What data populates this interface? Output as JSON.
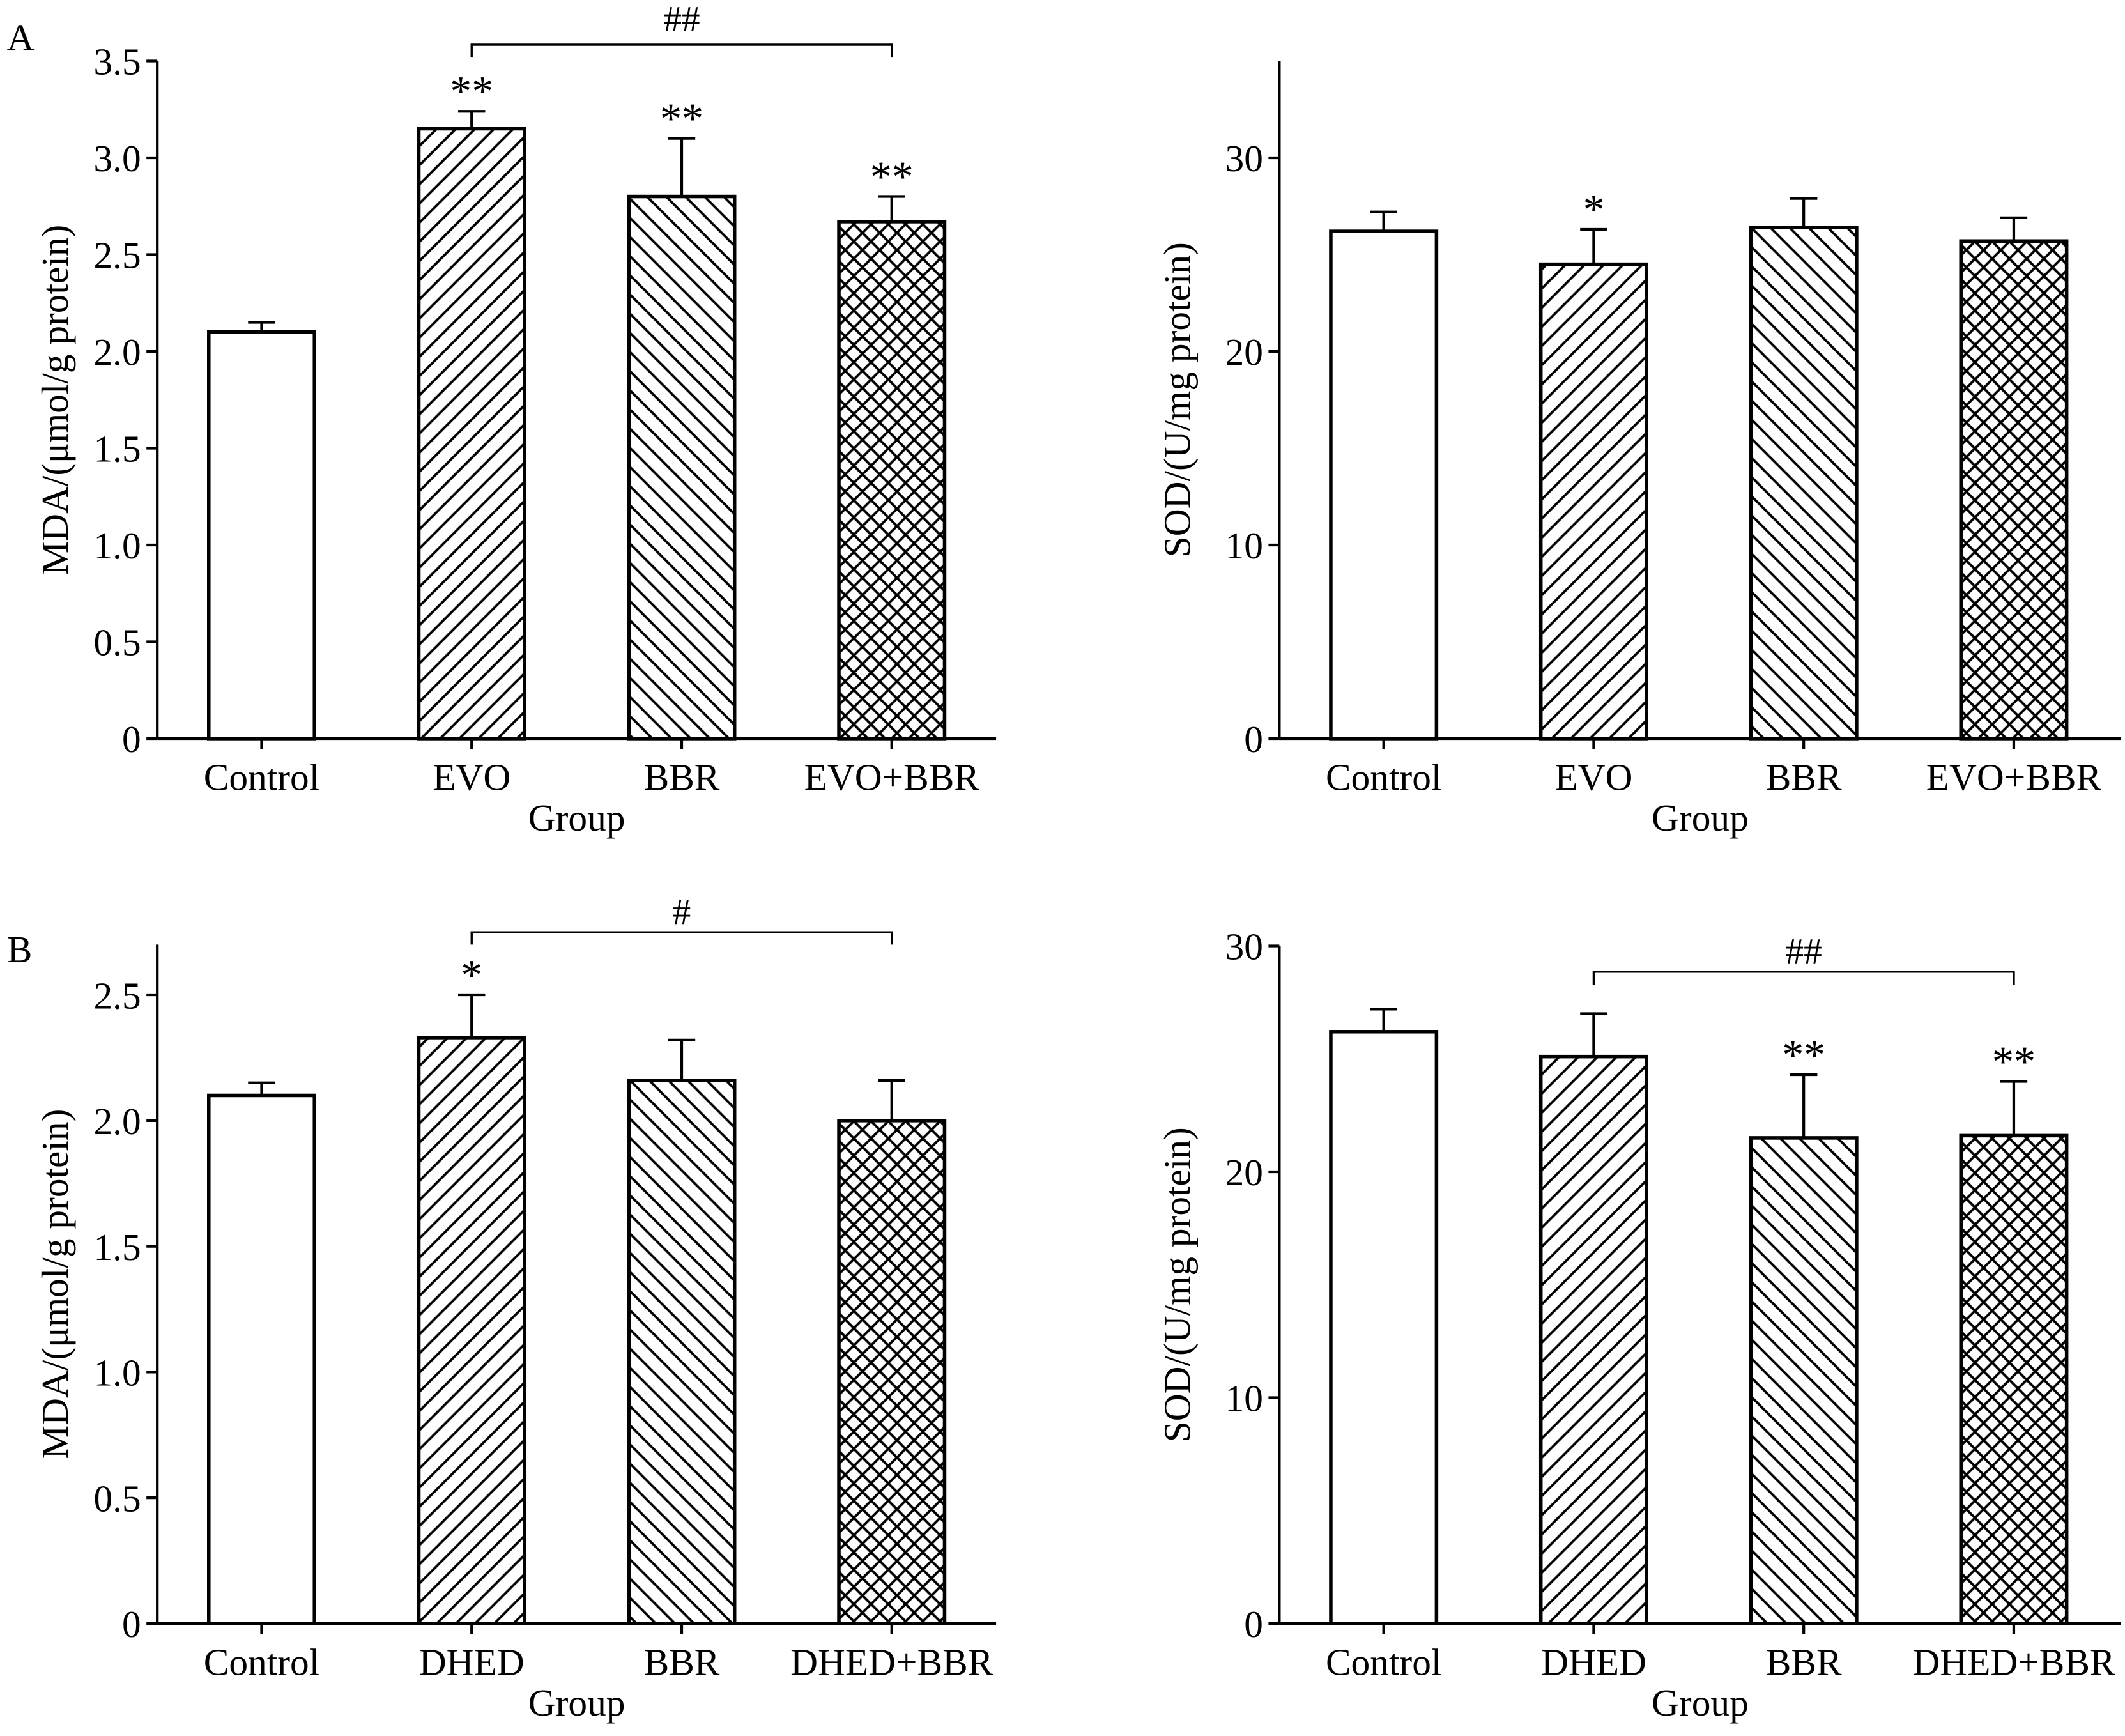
{
  "panel_labels": [
    "A",
    "B"
  ],
  "colors": {
    "ink": "#000000",
    "background": "#ffffff"
  },
  "chart_data": [
    {
      "type": "bar",
      "categories": [
        "Control",
        "EVO",
        "BBR",
        "EVO+BBR"
      ],
      "values": [
        2.1,
        3.15,
        2.8,
        2.67
      ],
      "errors": [
        0.05,
        0.09,
        0.3,
        0.13
      ],
      "significance": [
        "",
        "**",
        "**",
        "**"
      ],
      "comparison": {
        "from": 1,
        "to": 3,
        "label": "##"
      },
      "bar_fills": [
        "open",
        "forward-hatch",
        "back-hatch",
        "cross-hatch"
      ],
      "xlabel": "Group",
      "ylabel": "MDA/(μmol/g protein)",
      "ylim": [
        0,
        3.5
      ],
      "yticks": [
        0,
        0.5,
        1.0,
        1.5,
        2.0,
        2.5,
        3.0,
        3.5
      ],
      "ytick_labels": [
        "0",
        "0.5",
        "1.0",
        "1.5",
        "2.0",
        "2.5",
        "3.0",
        "3.5"
      ],
      "grid": false
    },
    {
      "type": "bar",
      "categories": [
        "Control",
        "EVO",
        "BBR",
        "EVO+BBR"
      ],
      "values": [
        26.2,
        24.5,
        26.4,
        25.7
      ],
      "errors": [
        1.0,
        1.8,
        1.5,
        1.2
      ],
      "significance": [
        "",
        "*",
        "",
        ""
      ],
      "bar_fills": [
        "open",
        "forward-hatch",
        "back-hatch",
        "cross-hatch"
      ],
      "xlabel": "Group",
      "ylabel": "SOD/(U/mg protein)",
      "ylim": [
        0,
        35
      ],
      "yticks": [
        0,
        10,
        20,
        30
      ],
      "ytick_labels": [
        "0",
        "10",
        "20",
        "30"
      ],
      "grid": false
    },
    {
      "type": "bar",
      "categories": [
        "Control",
        "DHED",
        "BBR",
        "DHED+BBR"
      ],
      "values": [
        2.1,
        2.33,
        2.16,
        2.0
      ],
      "errors": [
        0.05,
        0.17,
        0.16,
        0.16
      ],
      "significance": [
        "",
        "*",
        "",
        ""
      ],
      "comparison": {
        "from": 1,
        "to": 3,
        "label": "#"
      },
      "bar_fills": [
        "open",
        "forward-hatch",
        "back-hatch",
        "cross-hatch"
      ],
      "xlabel": "Group",
      "ylabel": "MDA/(μmol/g protein)",
      "ylim": [
        0,
        2.7
      ],
      "yticks": [
        0,
        0.5,
        1.0,
        1.5,
        2.0,
        2.5
      ],
      "ytick_labels": [
        "0",
        "0.5",
        "1.0",
        "1.5",
        "2.0",
        "2.5"
      ],
      "grid": false
    },
    {
      "type": "bar",
      "categories": [
        "Control",
        "DHED",
        "BBR",
        "DHED+BBR"
      ],
      "values": [
        26.2,
        25.1,
        21.5,
        21.6
      ],
      "errors": [
        1.0,
        1.9,
        2.8,
        2.4
      ],
      "significance": [
        "",
        "",
        "**",
        "**"
      ],
      "comparison": {
        "from": 1,
        "to": 3,
        "label": "##"
      },
      "bar_fills": [
        "open",
        "forward-hatch",
        "back-hatch",
        "cross-hatch"
      ],
      "xlabel": "Group",
      "ylabel": "SOD/(U/mg protein)",
      "ylim": [
        0,
        30
      ],
      "yticks": [
        0,
        10,
        20,
        30
      ],
      "ytick_labels": [
        "0",
        "10",
        "20",
        "30"
      ],
      "grid": false
    }
  ]
}
